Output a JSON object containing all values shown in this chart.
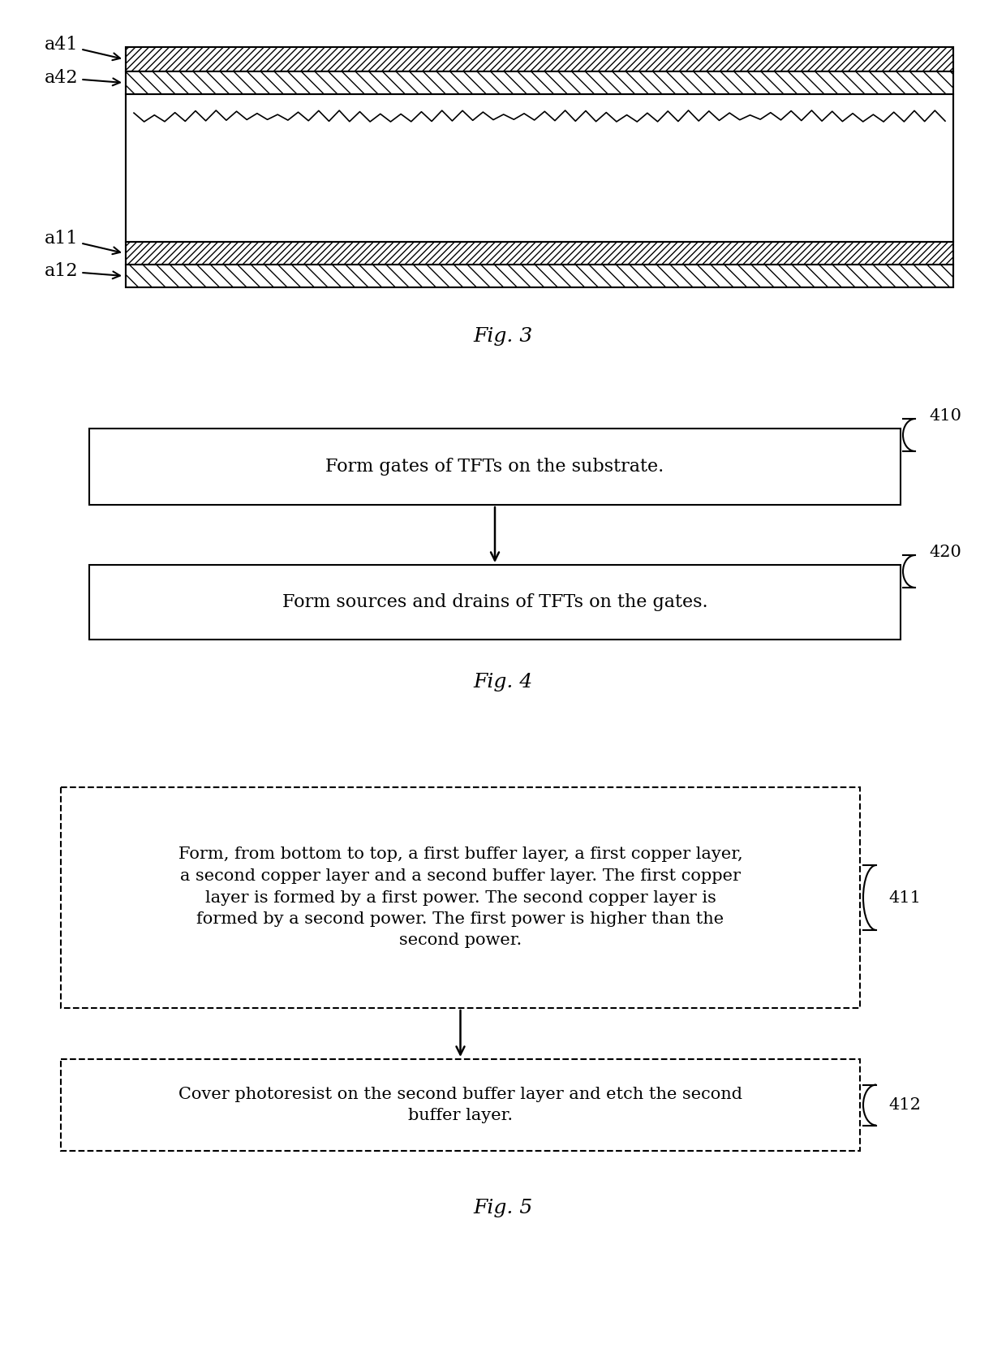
{
  "bg_color": "#ffffff",
  "fig_width": 12.4,
  "fig_height": 16.72,
  "fig3": {
    "title": "Fig. 3",
    "label_a41": "a41",
    "label_a42": "a42",
    "label_a11": "a11",
    "label_a12": "a12"
  },
  "fig4": {
    "title": "Fig. 4",
    "box410_text": "Form gates of TFTs on the substrate.",
    "box420_text": "Form sources and drains of TFTs on the gates.",
    "label_410": "410",
    "label_420": "420"
  },
  "fig5": {
    "title": "Fig. 5",
    "box411_text": "Form, from bottom to top, a first buffer layer, a first copper layer,\na second copper layer and a second buffer layer. The first copper\nlayer is formed by a first power. The second copper layer is\nformed by a second power. The first power is higher than the\nsecond power.",
    "box412_text": "Cover photoresist on the second buffer layer and etch the second\nbuffer layer.",
    "label_411": "411",
    "label_412": "412"
  }
}
